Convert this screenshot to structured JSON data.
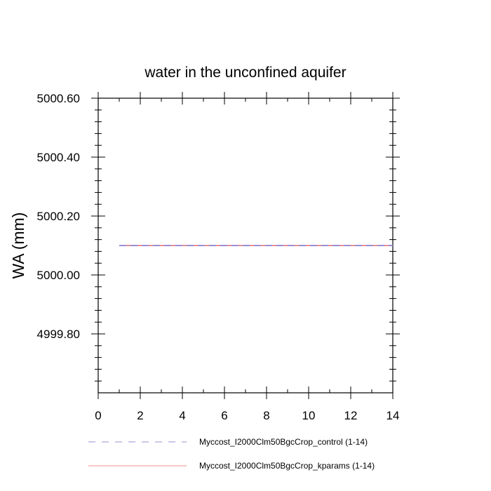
{
  "chart_data": {
    "type": "line",
    "title": "water in the unconfined aquifer",
    "xlabel": "",
    "ylabel": "WA  (mm)",
    "xlim": [
      0,
      14
    ],
    "ylim": [
      4999.6,
      5000.6
    ],
    "x_ticks": [
      0,
      2,
      4,
      6,
      8,
      10,
      12,
      14
    ],
    "x_tick_labels": [
      "0",
      "2",
      "4",
      "6",
      "8",
      "10",
      "12",
      "14"
    ],
    "y_ticks": [
      4999.8,
      5000.0,
      5000.2,
      5000.4,
      5000.6
    ],
    "y_tick_labels": [
      "4999.80",
      "5000.00",
      "5000.20",
      "5000.40",
      "5000.60"
    ],
    "grid": false,
    "legend_position": "bottom",
    "series": [
      {
        "name": "Myccost_I2000Clm50BgcCrop_control (1-14)",
        "color": "#9a8fd6",
        "dash": "dashed",
        "x": [
          1,
          2,
          3,
          4,
          5,
          6,
          7,
          8,
          9,
          10,
          11,
          12,
          13,
          14
        ],
        "values": [
          5000.1,
          5000.1,
          5000.1,
          5000.1,
          5000.1,
          5000.1,
          5000.1,
          5000.1,
          5000.1,
          5000.1,
          5000.1,
          5000.1,
          5000.1,
          5000.1
        ]
      },
      {
        "name": "Myccost_I2000Clm50BgcCrop_kparams (1-14)",
        "color": "#ee8f8f",
        "dash": "solid",
        "x": [
          1,
          2,
          3,
          4,
          5,
          6,
          7,
          8,
          9,
          10,
          11,
          12,
          13,
          14
        ],
        "values": [
          5000.1,
          5000.1,
          5000.1,
          5000.1,
          5000.1,
          5000.1,
          5000.1,
          5000.1,
          5000.1,
          5000.1,
          5000.1,
          5000.1,
          5000.1,
          5000.1
        ]
      }
    ]
  }
}
